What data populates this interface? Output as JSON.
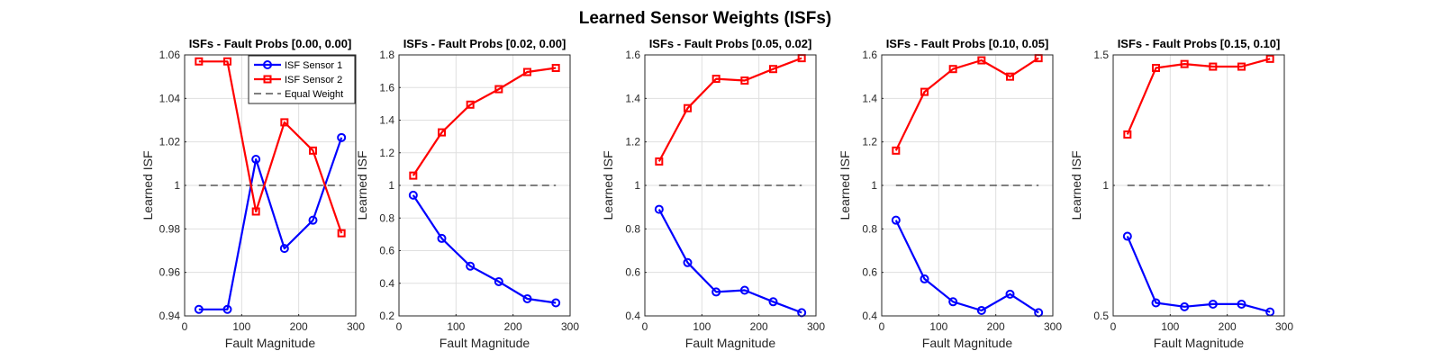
{
  "figure_title": "Learned Sensor Weights (ISFs)",
  "colors": {
    "sensor1": "#0000ff",
    "sensor2": "#ff0000",
    "equal": "#333333"
  },
  "chart_data": [
    {
      "type": "line",
      "title": "ISFs - Fault Probs [0.00, 0.00]",
      "xlabel": "Fault Magnitude",
      "ylabel": "Learned ISF",
      "xlim": [
        0,
        300
      ],
      "xticks": [
        0,
        100,
        200,
        300
      ],
      "ylim": [
        0.94,
        1.06
      ],
      "yticks": [
        0.94,
        0.96,
        0.98,
        1,
        1.02,
        1.04,
        1.06
      ],
      "ytick_labels": [
        "0.94",
        "0.96",
        "0.98",
        "1",
        "1.02",
        "1.04",
        "1.06"
      ],
      "grid": true,
      "legend": {
        "placement": "top-right",
        "entries": [
          "ISF Sensor 1",
          "ISF Sensor 2",
          "Equal Weight"
        ]
      },
      "x": [
        25,
        75,
        125,
        175,
        225,
        275
      ],
      "series": [
        {
          "name": "ISF Sensor 1",
          "values": [
            0.943,
            0.943,
            1.012,
            0.971,
            0.984,
            1.022
          ]
        },
        {
          "name": "ISF Sensor 2",
          "values": [
            1.057,
            1.057,
            0.988,
            1.029,
            1.016,
            0.978
          ]
        },
        {
          "name": "Equal Weight",
          "values": [
            1,
            1,
            1,
            1,
            1,
            1
          ]
        }
      ]
    },
    {
      "type": "line",
      "title": "ISFs - Fault Probs [0.02, 0.00]",
      "xlabel": "Fault Magnitude",
      "ylabel": "Learned ISF",
      "xlim": [
        0,
        300
      ],
      "xticks": [
        0,
        100,
        200,
        300
      ],
      "ylim": [
        0.2,
        1.8
      ],
      "yticks": [
        0.2,
        0.4,
        0.6,
        0.8,
        1,
        1.2,
        1.4,
        1.6,
        1.8
      ],
      "ytick_labels": [
        "0.2",
        "0.4",
        "0.6",
        "0.8",
        "1",
        "1.2",
        "1.4",
        "1.6",
        "1.8"
      ],
      "grid": true,
      "x": [
        25,
        75,
        125,
        175,
        225,
        275
      ],
      "series": [
        {
          "name": "ISF Sensor 1",
          "values": [
            0.94,
            0.675,
            0.505,
            0.41,
            0.305,
            0.28
          ]
        },
        {
          "name": "ISF Sensor 2",
          "values": [
            1.06,
            1.325,
            1.495,
            1.59,
            1.695,
            1.72
          ]
        },
        {
          "name": "Equal Weight",
          "values": [
            1,
            1,
            1,
            1,
            1,
            1
          ]
        }
      ]
    },
    {
      "type": "line",
      "title": "ISFs - Fault Probs [0.05, 0.02]",
      "xlabel": "Fault Magnitude",
      "ylabel": "Learned ISF",
      "xlim": [
        0,
        300
      ],
      "xticks": [
        0,
        100,
        200,
        300
      ],
      "ylim": [
        0.4,
        1.6
      ],
      "yticks": [
        0.4,
        0.6,
        0.8,
        1,
        1.2,
        1.4,
        1.6
      ],
      "ytick_labels": [
        "0.4",
        "0.6",
        "0.8",
        "1",
        "1.2",
        "1.4",
        "1.6"
      ],
      "grid": true,
      "x": [
        25,
        75,
        125,
        175,
        225,
        275
      ],
      "series": [
        {
          "name": "ISF Sensor 1",
          "values": [
            0.89,
            0.645,
            0.51,
            0.518,
            0.465,
            0.415
          ]
        },
        {
          "name": "ISF Sensor 2",
          "values": [
            1.11,
            1.355,
            1.49,
            1.482,
            1.535,
            1.585
          ]
        },
        {
          "name": "Equal Weight",
          "values": [
            1,
            1,
            1,
            1,
            1,
            1
          ]
        }
      ]
    },
    {
      "type": "line",
      "title": "ISFs - Fault Probs [0.10, 0.05]",
      "xlabel": "Fault Magnitude",
      "ylabel": "Learned ISF",
      "xlim": [
        0,
        300
      ],
      "xticks": [
        0,
        100,
        200,
        300
      ],
      "ylim": [
        0.4,
        1.6
      ],
      "yticks": [
        0.4,
        0.6,
        0.8,
        1,
        1.2,
        1.4,
        1.6
      ],
      "ytick_labels": [
        "0.4",
        "0.6",
        "0.8",
        "1",
        "1.2",
        "1.4",
        "1.6"
      ],
      "grid": true,
      "x": [
        25,
        75,
        125,
        175,
        225,
        275
      ],
      "series": [
        {
          "name": "ISF Sensor 1",
          "values": [
            0.84,
            0.57,
            0.465,
            0.425,
            0.5,
            0.415
          ]
        },
        {
          "name": "ISF Sensor 2",
          "values": [
            1.16,
            1.43,
            1.535,
            1.575,
            1.5,
            1.585
          ]
        },
        {
          "name": "Equal Weight",
          "values": [
            1,
            1,
            1,
            1,
            1,
            1
          ]
        }
      ]
    },
    {
      "type": "line",
      "title": "ISFs - Fault Probs [0.15, 0.10]",
      "xlabel": "Fault Magnitude",
      "ylabel": "Learned ISF",
      "xlim": [
        0,
        300
      ],
      "xticks": [
        0,
        100,
        200,
        300
      ],
      "ylim": [
        0.5,
        1.5
      ],
      "yticks": [
        0.5,
        1,
        1.5
      ],
      "ytick_labels": [
        "0.5",
        "1",
        "1.5"
      ],
      "grid": true,
      "x": [
        25,
        75,
        125,
        175,
        225,
        275
      ],
      "series": [
        {
          "name": "ISF Sensor 1",
          "values": [
            0.805,
            0.55,
            0.535,
            0.545,
            0.545,
            0.515
          ]
        },
        {
          "name": "ISF Sensor 2",
          "values": [
            1.195,
            1.45,
            1.465,
            1.455,
            1.455,
            1.485
          ]
        },
        {
          "name": "Equal Weight",
          "values": [
            1,
            1,
            1,
            1,
            1,
            1
          ]
        }
      ]
    }
  ]
}
